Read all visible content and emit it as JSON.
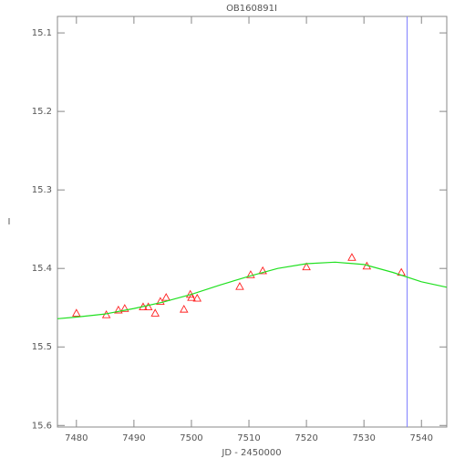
{
  "chart_data": {
    "type": "scatter",
    "title": "OB160891I",
    "x_label": "JD - 2450000",
    "y_label": "I",
    "xlim": [
      7476.7,
      7544.4
    ],
    "ylim": [
      15.079,
      15.602
    ],
    "y_inverted": true,
    "xticks": [
      7480,
      7490,
      7500,
      7510,
      7520,
      7530,
      7540
    ],
    "yticks": [
      15.1,
      15.2,
      15.3,
      15.4,
      15.5,
      15.6
    ],
    "vline": {
      "x": 7537.5,
      "color": "#8080ff"
    },
    "series": [
      {
        "marker": "triangle",
        "color": "#ff2020",
        "x": [
          7480.0,
          7485.2,
          7487.3,
          7488.4,
          7491.6,
          7492.5,
          7493.7,
          7494.6,
          7495.6,
          7498.7,
          7499.8,
          7500.0,
          7501.0,
          7508.4,
          7510.3,
          7512.4,
          7520.0,
          7527.9,
          7530.5,
          7536.5
        ],
        "values": [
          15.457,
          15.459,
          15.453,
          15.451,
          15.449,
          15.449,
          15.457,
          15.442,
          15.437,
          15.452,
          15.433,
          15.437,
          15.438,
          15.423,
          15.408,
          15.403,
          15.398,
          15.386,
          15.397,
          15.405
        ]
      },
      {
        "marker": "line",
        "color": "#20e020",
        "x": [
          7476.7,
          7480,
          7485,
          7490,
          7495,
          7500,
          7505,
          7510,
          7515,
          7520,
          7525,
          7530,
          7535,
          7540,
          7544.4
        ],
        "values": [
          15.464,
          15.462,
          15.458,
          15.451,
          15.443,
          15.433,
          15.421,
          15.41,
          15.4,
          15.394,
          15.392,
          15.395,
          15.405,
          15.417,
          15.424
        ]
      }
    ]
  }
}
